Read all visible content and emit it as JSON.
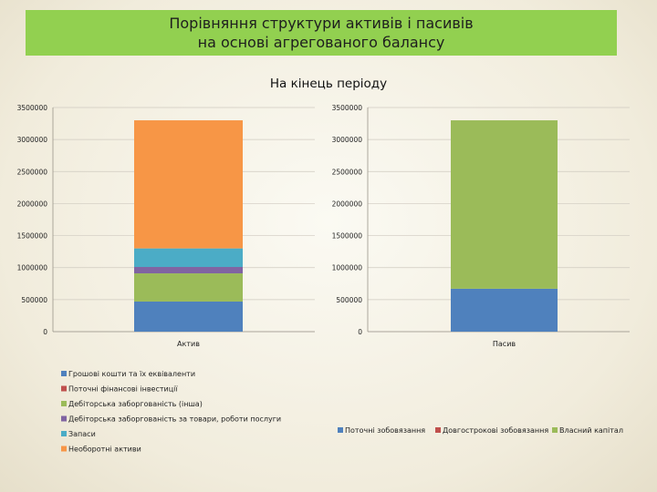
{
  "banner": {
    "line1": "Порівняння структури активів і пасивів",
    "line2": "на основі агрегованого балансу"
  },
  "chart_data": [
    {
      "type": "bar",
      "stacked": true,
      "title": "На кінець періоду",
      "categories": [
        "Актив"
      ],
      "yticks": [
        "0",
        "500000",
        "1000000",
        "1500000",
        "2000000",
        "2500000",
        "3000000",
        "3500000"
      ],
      "ylim": [
        0,
        3500000
      ],
      "grid": true,
      "legend_placement": "bottom-left",
      "series": [
        {
          "name": "Грошові кошти та їх еквіваленти",
          "color": "#4f81bd",
          "values": [
            470000
          ]
        },
        {
          "name": "Поточні фінансові інвестиції",
          "color": "#c0504d",
          "values": [
            0
          ]
        },
        {
          "name": "Дебіторська заборгованість (інша)",
          "color": "#9bbb59",
          "values": [
            440000
          ]
        },
        {
          "name": "Дебіторська заборгованість за товари, роботи послуги",
          "color": "#8064a2",
          "values": [
            100000
          ]
        },
        {
          "name": "Запаси",
          "color": "#4bacc6",
          "values": [
            290000
          ]
        },
        {
          "name": "Необоротні активи",
          "color": "#f79646",
          "values": [
            2000000
          ]
        }
      ]
    },
    {
      "type": "bar",
      "stacked": true,
      "categories": [
        "Пасив"
      ],
      "yticks": [
        "0",
        "500000",
        "1000000",
        "1500000",
        "2000000",
        "2500000",
        "3000000",
        "3500000"
      ],
      "ylim": [
        0,
        3500000
      ],
      "grid": true,
      "legend_placement": "bottom",
      "series": [
        {
          "name": "Поточні зобовязання",
          "color": "#4f81bd",
          "values": [
            670000
          ]
        },
        {
          "name": "Довгострокові зобовязання",
          "color": "#c0504d",
          "values": [
            0
          ]
        },
        {
          "name": "Власний капітал",
          "color": "#9bbb59",
          "values": [
            2630000
          ]
        }
      ]
    }
  ]
}
